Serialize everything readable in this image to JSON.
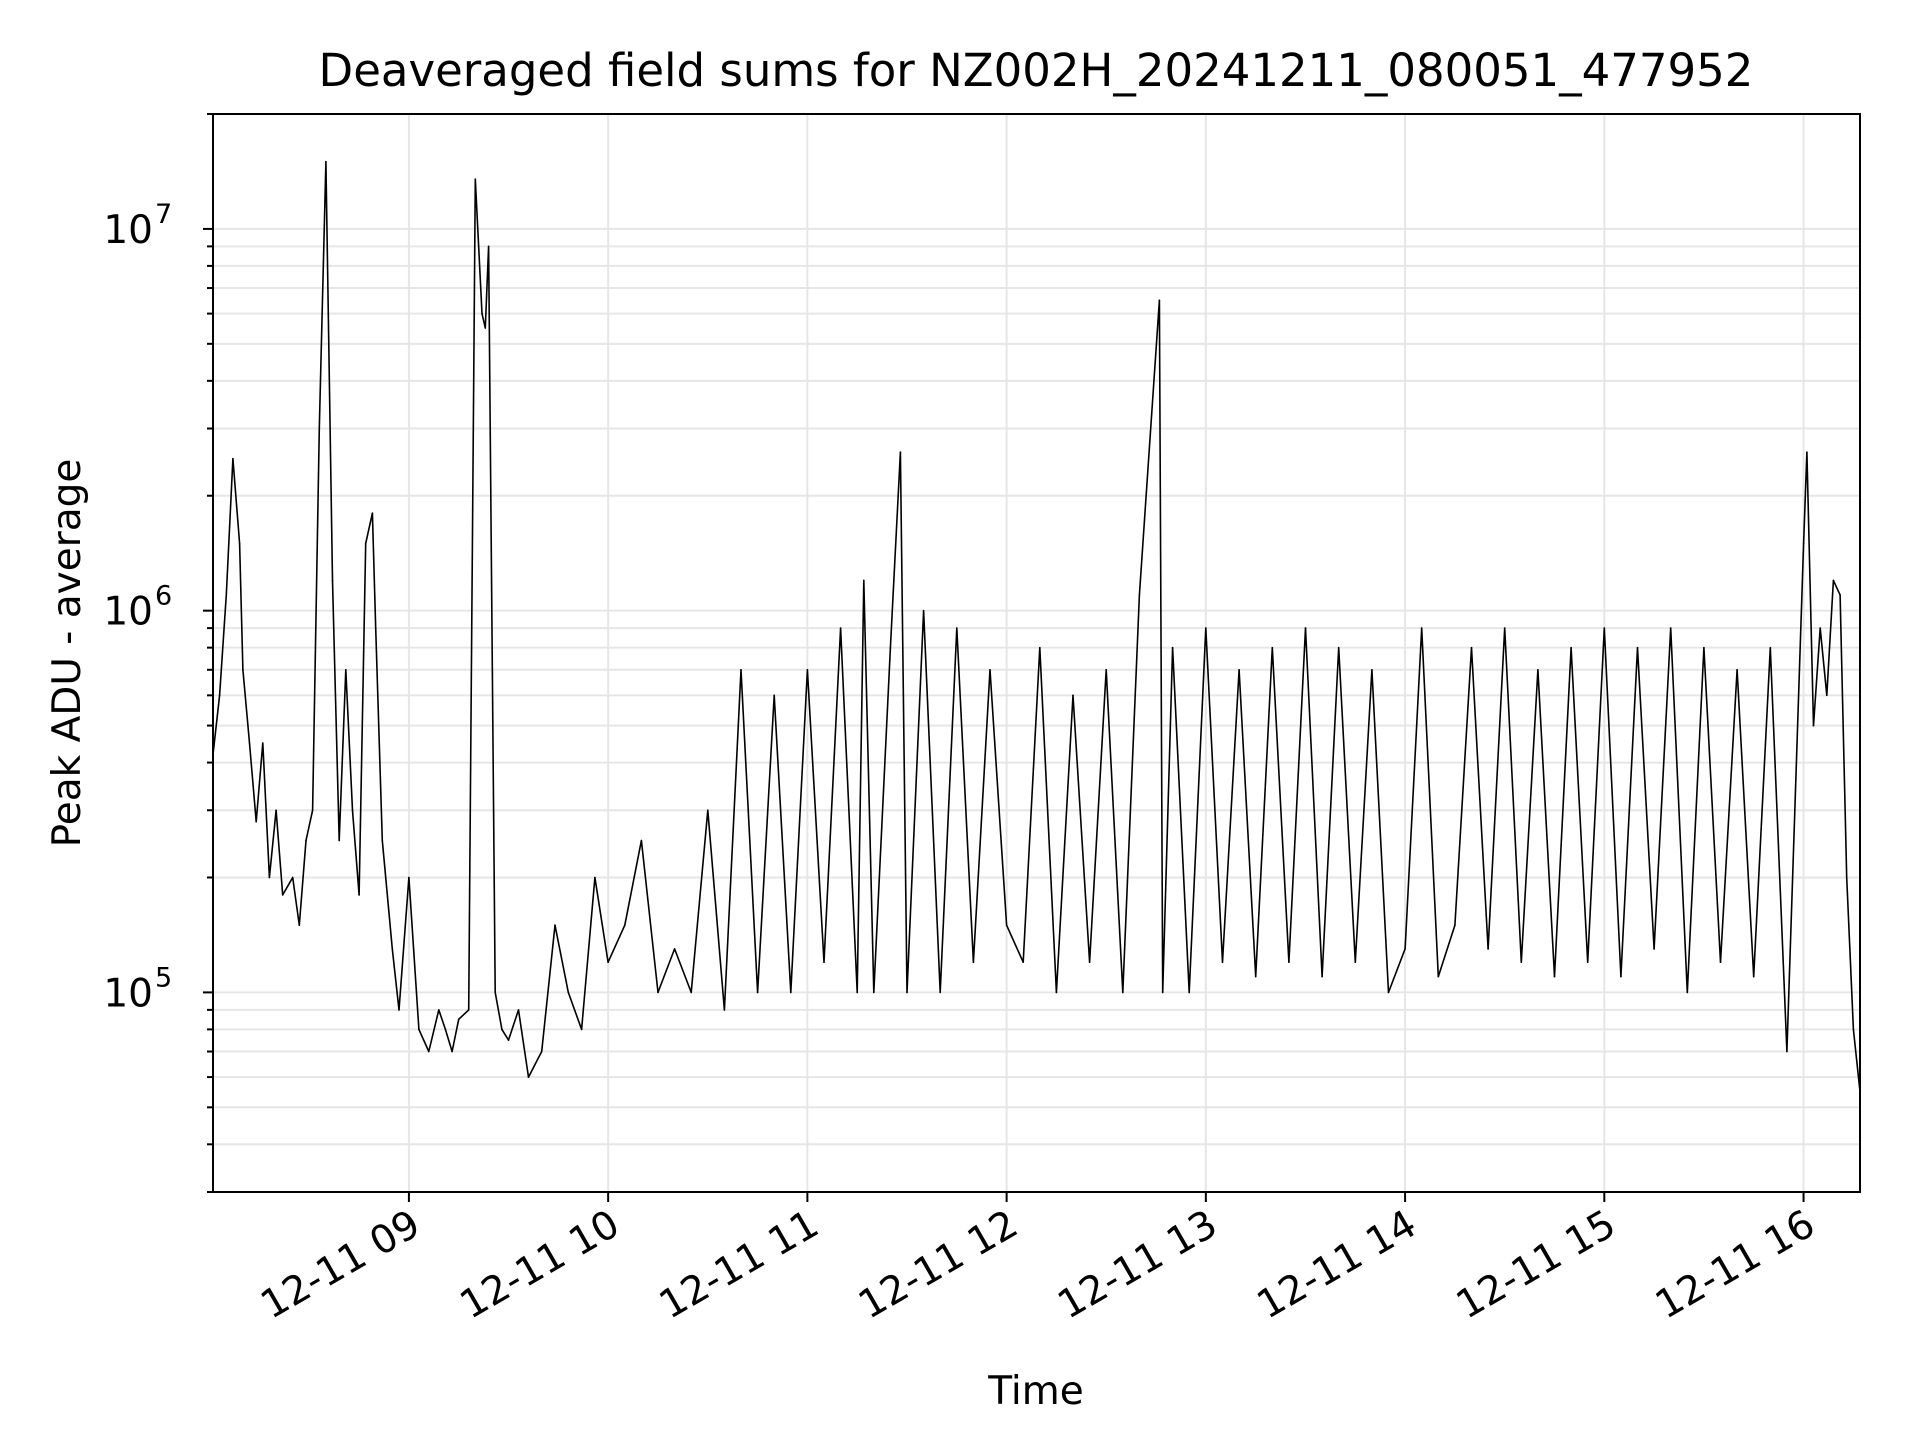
{
  "chart_data": {
    "type": "line",
    "title": "Deaveraged field sums for NZ002H_20241211_080051_477952",
    "xlabel": "Time",
    "ylabel": "Peak ADU - average",
    "yscale": "log",
    "xlim": [
      "2024-12-11 08:01",
      "2024-12-11 16:17"
    ],
    "ylim": [
      30000,
      20000000
    ],
    "grid": true,
    "line_color": "#000000",
    "x_ticks": [
      {
        "value": "2024-12-11 09:00",
        "label": "12-11 09"
      },
      {
        "value": "2024-12-11 10:00",
        "label": "12-11 10"
      },
      {
        "value": "2024-12-11 11:00",
        "label": "12-11 11"
      },
      {
        "value": "2024-12-11 12:00",
        "label": "12-11 12"
      },
      {
        "value": "2024-12-11 13:00",
        "label": "12-11 13"
      },
      {
        "value": "2024-12-11 14:00",
        "label": "12-11 14"
      },
      {
        "value": "2024-12-11 15:00",
        "label": "12-11 15"
      },
      {
        "value": "2024-12-11 16:00",
        "label": "12-11 16"
      }
    ],
    "y_ticks": [
      {
        "value": 100000,
        "base": "10",
        "exp": "5"
      },
      {
        "value": 1000000,
        "base": "10",
        "exp": "6"
      },
      {
        "value": 10000000,
        "base": "10",
        "exp": "7"
      }
    ],
    "series": [
      {
        "x": [
          "2024-12-11 08:01",
          "2024-12-11 08:03",
          "2024-12-11 08:05",
          "2024-12-11 08:07",
          "2024-12-11 08:09",
          "2024-12-11 08:10",
          "2024-12-11 08:12",
          "2024-12-11 08:14",
          "2024-12-11 08:16",
          "2024-12-11 08:18",
          "2024-12-11 08:20",
          "2024-12-11 08:22",
          "2024-12-11 08:25",
          "2024-12-11 08:27",
          "2024-12-11 08:29",
          "2024-12-11 08:31",
          "2024-12-11 08:33",
          "2024-12-11 08:35",
          "2024-12-11 08:37",
          "2024-12-11 08:39",
          "2024-12-11 08:41",
          "2024-12-11 08:43",
          "2024-12-11 08:45",
          "2024-12-11 08:47",
          "2024-12-11 08:49",
          "2024-12-11 08:50",
          "2024-12-11 08:52",
          "2024-12-11 08:55",
          "2024-12-11 08:57",
          "2024-12-11 09:00",
          "2024-12-11 09:03",
          "2024-12-11 09:06",
          "2024-12-11 09:09",
          "2024-12-11 09:11",
          "2024-12-11 09:13",
          "2024-12-11 09:15",
          "2024-12-11 09:18",
          "2024-12-11 09:20",
          "2024-12-11 09:22",
          "2024-12-11 09:23",
          "2024-12-11 09:24",
          "2024-12-11 09:26",
          "2024-12-11 09:28",
          "2024-12-11 09:30",
          "2024-12-11 09:33",
          "2024-12-11 09:36",
          "2024-12-11 09:40",
          "2024-12-11 09:44",
          "2024-12-11 09:48",
          "2024-12-11 09:52",
          "2024-12-11 09:56",
          "2024-12-11 10:00",
          "2024-12-11 10:05",
          "2024-12-11 10:10",
          "2024-12-11 10:15",
          "2024-12-11 10:20",
          "2024-12-11 10:25",
          "2024-12-11 10:30",
          "2024-12-11 10:35",
          "2024-12-11 10:40",
          "2024-12-11 10:45",
          "2024-12-11 10:50",
          "2024-12-11 10:55",
          "2024-12-11 11:00",
          "2024-12-11 11:05",
          "2024-12-11 11:10",
          "2024-12-11 11:15",
          "2024-12-11 11:17",
          "2024-12-11 11:20",
          "2024-12-11 11:25",
          "2024-12-11 11:28",
          "2024-12-11 11:30",
          "2024-12-11 11:35",
          "2024-12-11 11:40",
          "2024-12-11 11:45",
          "2024-12-11 11:50",
          "2024-12-11 11:55",
          "2024-12-11 12:00",
          "2024-12-11 12:05",
          "2024-12-11 12:10",
          "2024-12-11 12:15",
          "2024-12-11 12:20",
          "2024-12-11 12:25",
          "2024-12-11 12:30",
          "2024-12-11 12:35",
          "2024-12-11 12:40",
          "2024-12-11 12:46",
          "2024-12-11 12:47",
          "2024-12-11 12:50",
          "2024-12-11 12:55",
          "2024-12-11 13:00",
          "2024-12-11 13:05",
          "2024-12-11 13:10",
          "2024-12-11 13:15",
          "2024-12-11 13:20",
          "2024-12-11 13:25",
          "2024-12-11 13:30",
          "2024-12-11 13:35",
          "2024-12-11 13:40",
          "2024-12-11 13:45",
          "2024-12-11 13:50",
          "2024-12-11 13:55",
          "2024-12-11 14:00",
          "2024-12-11 14:05",
          "2024-12-11 14:10",
          "2024-12-11 14:15",
          "2024-12-11 14:20",
          "2024-12-11 14:25",
          "2024-12-11 14:30",
          "2024-12-11 14:35",
          "2024-12-11 14:40",
          "2024-12-11 14:45",
          "2024-12-11 14:50",
          "2024-12-11 14:55",
          "2024-12-11 15:00",
          "2024-12-11 15:05",
          "2024-12-11 15:10",
          "2024-12-11 15:15",
          "2024-12-11 15:20",
          "2024-12-11 15:25",
          "2024-12-11 15:30",
          "2024-12-11 15:35",
          "2024-12-11 15:40",
          "2024-12-11 15:45",
          "2024-12-11 15:50",
          "2024-12-11 15:55",
          "2024-12-11 16:00",
          "2024-12-11 16:01",
          "2024-12-11 16:03",
          "2024-12-11 16:05",
          "2024-12-11 16:07",
          "2024-12-11 16:09",
          "2024-12-11 16:11",
          "2024-12-11 16:13",
          "2024-12-11 16:15",
          "2024-12-11 16:17"
        ],
        "y": [
          420000,
          600000,
          1100000,
          2500000,
          1500000,
          700000,
          450000,
          280000,
          450000,
          200000,
          300000,
          180000,
          200000,
          150000,
          250000,
          300000,
          3000000,
          15000000,
          1200000,
          250000,
          700000,
          300000,
          180000,
          1500000,
          1800000,
          900000,
          250000,
          130000,
          90000,
          200000,
          80000,
          70000,
          90000,
          80000,
          70000,
          85000,
          90000,
          13500000,
          6000000,
          5500000,
          9000000,
          100000,
          80000,
          75000,
          90000,
          60000,
          70000,
          150000,
          100000,
          80000,
          200000,
          120000,
          150000,
          250000,
          100000,
          130000,
          100000,
          300000,
          90000,
          700000,
          100000,
          600000,
          100000,
          700000,
          120000,
          900000,
          100000,
          1200000,
          100000,
          800000,
          2600000,
          100000,
          1000000,
          100000,
          900000,
          120000,
          700000,
          150000,
          120000,
          800000,
          100000,
          600000,
          120000,
          700000,
          100000,
          1100000,
          6500000,
          100000,
          800000,
          100000,
          900000,
          120000,
          700000,
          110000,
          800000,
          120000,
          900000,
          110000,
          800000,
          120000,
          700000,
          100000,
          130000,
          900000,
          110000,
          150000,
          800000,
          130000,
          900000,
          120000,
          700000,
          110000,
          800000,
          120000,
          900000,
          110000,
          800000,
          130000,
          900000,
          100000,
          800000,
          120000,
          700000,
          110000,
          800000,
          70000,
          1500000,
          2600000,
          500000,
          900000,
          600000,
          1200000,
          1100000,
          200000,
          80000,
          55000
        ]
      }
    ]
  }
}
